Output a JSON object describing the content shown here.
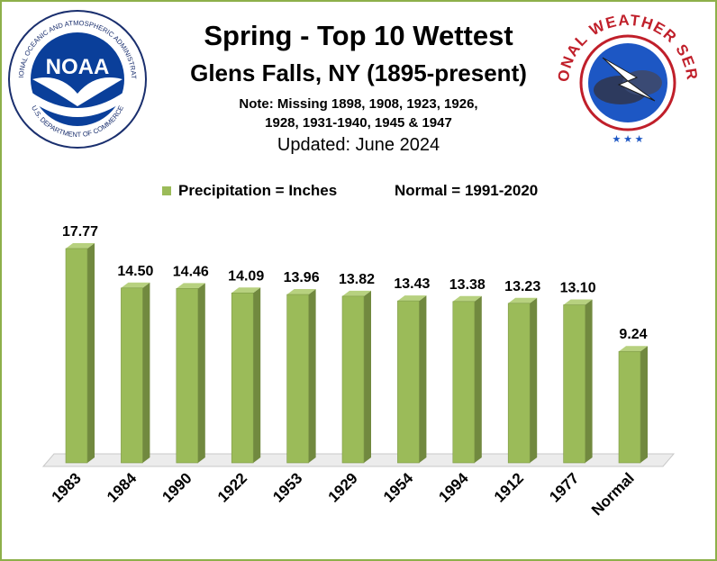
{
  "header": {
    "title": "Spring - Top 10 Wettest",
    "subtitle": "Glens Falls, NY (1895-present)",
    "note_line1": "Note: Missing 1898, 1908, 1923, 1926,",
    "note_line2": "1928, 1931-1940, 1945 & 1947",
    "updated": "Updated:  June 2024"
  },
  "logos": {
    "noaa": {
      "text": "NOAA",
      "ring_text": "NATIONAL OCEANIC AND ATMOSPHERIC ADMINISTRATION",
      "ring_text_bottom": "U.S. DEPARTMENT OF COMMERCE"
    },
    "nws": {
      "ring_text": "NATIONAL WEATHER SERVICE"
    }
  },
  "legend": {
    "series_label": "Precipitation = Inches",
    "normal_note": "Normal = 1991-2020"
  },
  "colors": {
    "bar_front": "#9bbb59",
    "bar_side": "#71893f",
    "bar_top": "#b7d17f",
    "border": "#8db04a"
  },
  "chart_data": {
    "type": "bar",
    "categories": [
      "1983",
      "1984",
      "1990",
      "1922",
      "1953",
      "1929",
      "1954",
      "1994",
      "1912",
      "1977",
      "Normal"
    ],
    "values": [
      17.77,
      14.5,
      14.46,
      14.09,
      13.96,
      13.82,
      13.43,
      13.38,
      13.23,
      13.1,
      9.24
    ],
    "data_labels": [
      "17.77",
      "14.50",
      "14.46",
      "14.09",
      "13.96",
      "13.82",
      "13.43",
      "13.38",
      "13.23",
      "13.10",
      "9.24"
    ],
    "ylim": [
      0,
      20
    ],
    "grid": false,
    "legend_position": "top"
  }
}
